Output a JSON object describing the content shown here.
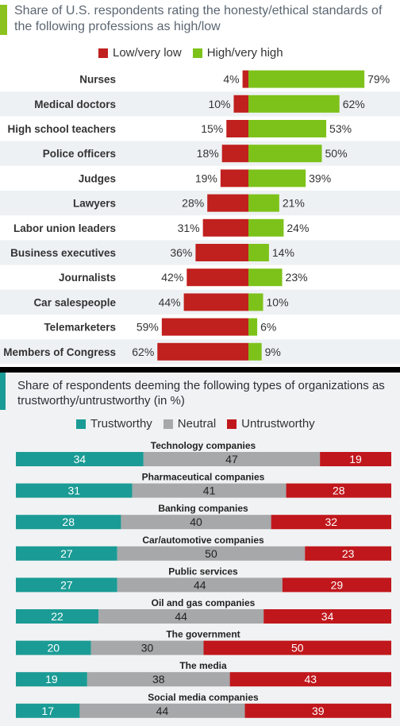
{
  "chart_data": [
    {
      "type": "bar",
      "title": "Share of U.S. respondents rating the honesty/ethical standards of the following professions as high/low",
      "categories": [
        "Nurses",
        "Medical doctors",
        "High school teachers",
        "Police officers",
        "Judges",
        "Lawyers",
        "Labor union leaders",
        "Business executives",
        "Journalists",
        "Car salespeople",
        "Telemarketers",
        "Members of Congress"
      ],
      "series": [
        {
          "name": "Low/very low",
          "color": "#c0201e",
          "values": [
            4,
            10,
            15,
            18,
            19,
            28,
            31,
            36,
            42,
            44,
            59,
            62
          ]
        },
        {
          "name": "High/very high",
          "color": "#7dc21a",
          "values": [
            79,
            62,
            53,
            50,
            39,
            21,
            24,
            14,
            23,
            10,
            6,
            9
          ]
        }
      ],
      "value_suffix": "%"
    },
    {
      "type": "bar",
      "title": "Share of respondents deeming the following types of organizations as trustworthy/untrustworthy (in %)",
      "categories": [
        "Technology companies",
        "Pharmaceutical companies",
        "Banking companies",
        "Car/automotive companies",
        "Public services",
        "Oil and gas companies",
        "The government",
        "The media",
        "Social media companies"
      ],
      "series": [
        {
          "name": "Trustworthy",
          "color": "#1b9b95",
          "values": [
            34,
            31,
            28,
            27,
            27,
            22,
            20,
            19,
            17
          ]
        },
        {
          "name": "Neutral",
          "color": "#a6a8aa",
          "values": [
            47,
            41,
            40,
            50,
            44,
            44,
            30,
            38,
            44
          ]
        },
        {
          "name": "Untrustworthy",
          "color": "#c0171c",
          "values": [
            19,
            28,
            32,
            23,
            29,
            34,
            50,
            43,
            39
          ]
        }
      ]
    }
  ]
}
